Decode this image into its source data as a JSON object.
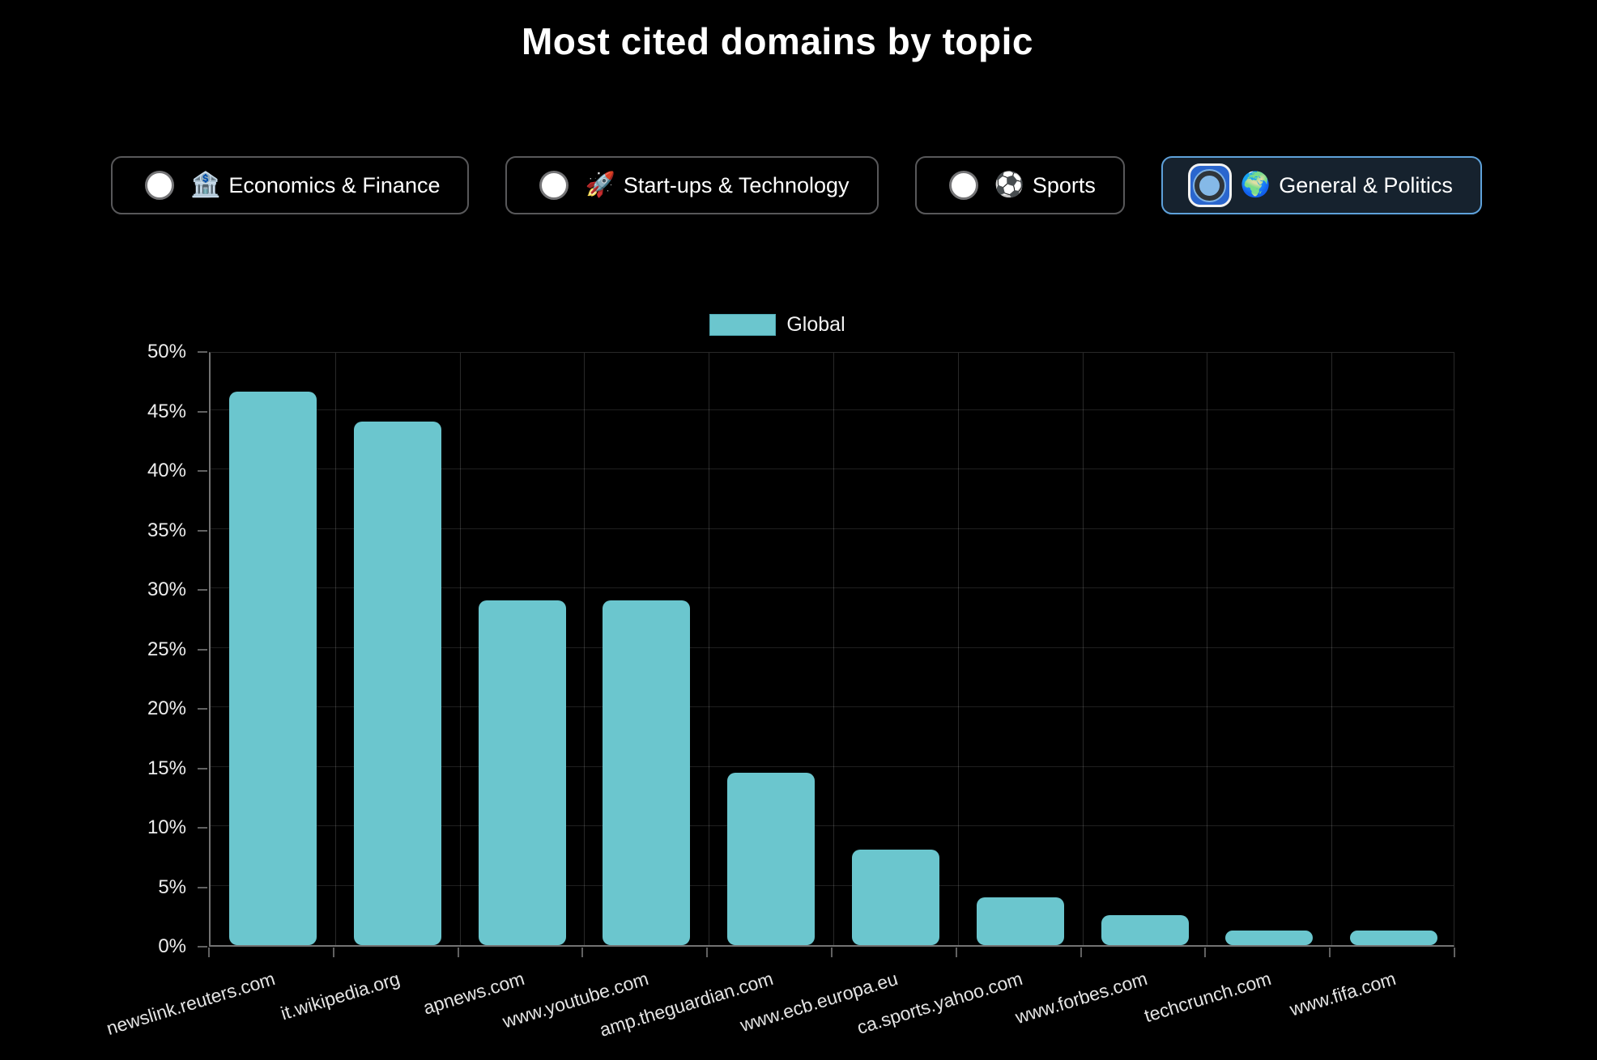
{
  "title": "Most cited domains by topic",
  "filters": [
    {
      "label": "Economics & Finance",
      "icon": "🏦",
      "icon_name": "bank-icon",
      "selected": false
    },
    {
      "label": "Start-ups & Technology",
      "icon": "🚀",
      "icon_name": "rocket-icon",
      "selected": false
    },
    {
      "label": "Sports",
      "icon": "⚽",
      "icon_name": "soccer-ball-icon",
      "selected": false
    },
    {
      "label": "General & Politics",
      "icon": "🌍",
      "icon_name": "globe-icon",
      "selected": true
    }
  ],
  "chart_data": {
    "type": "bar",
    "title": "Most cited domains by topic",
    "legend": [
      {
        "name": "Global",
        "color": "#6bc6ce"
      }
    ],
    "legend_position": "top",
    "grid": true,
    "categories": [
      "newslink.reuters.com",
      "it.wikipedia.org",
      "apnews.com",
      "www.youtube.com",
      "amp.theguardian.com",
      "www.ecb.europa.eu",
      "ca.sports.yahoo.com",
      "www.forbes.com",
      "techcrunch.com",
      "www.fifa.com"
    ],
    "series": [
      {
        "name": "Global",
        "values": [
          46.5,
          44,
          29,
          29,
          14.5,
          8,
          4,
          2.5,
          1.2,
          1.2
        ]
      }
    ],
    "xlabel": "",
    "ylabel": "",
    "ylim": [
      0,
      50
    ],
    "ytick_step": 5,
    "ytick_suffix": "%"
  },
  "colors": {
    "bar": "#6bc6ce",
    "selected_border": "#5ea1da",
    "selected_bg": "#16222e",
    "background": "#000000"
  }
}
